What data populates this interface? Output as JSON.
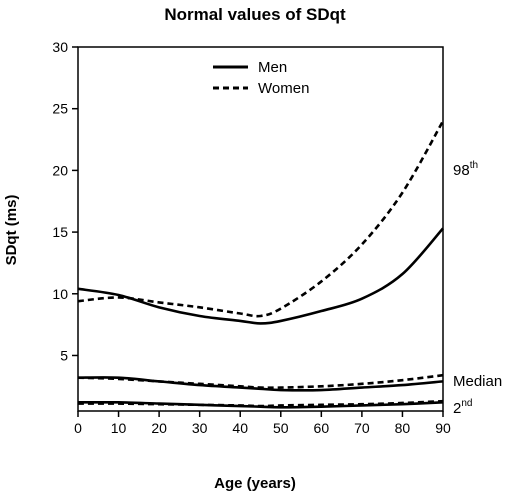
{
  "chart_data": {
    "type": "line",
    "title": "Normal values of SDqt",
    "xlabel": "Age (years)",
    "ylabel": "SDqt (ms)",
    "xlim": [
      0,
      90
    ],
    "ylim": [
      0.5,
      30
    ],
    "xticks": [
      0,
      10,
      20,
      30,
      40,
      50,
      60,
      70,
      80,
      90
    ],
    "yticks": [
      5,
      10,
      15,
      20,
      25,
      30
    ],
    "grid": false,
    "legend": {
      "placement": "top-center",
      "entries": [
        {
          "label": "Men",
          "style": "solid"
        },
        {
          "label": "Women",
          "style": "dashed"
        }
      ]
    },
    "curve_labels": [
      {
        "base": "98",
        "sup": "th"
      },
      {
        "base": "Median",
        "sup": ""
      },
      {
        "base": "2",
        "sup": "nd"
      }
    ],
    "x": [
      0,
      10,
      20,
      30,
      40,
      45,
      50,
      60,
      70,
      80,
      90
    ],
    "series": [
      {
        "group": "Men",
        "percentile": "98th",
        "style": "solid",
        "values": [
          10.4,
          9.9,
          8.9,
          8.2,
          7.8,
          7.6,
          7.8,
          8.6,
          9.6,
          11.6,
          15.3
        ]
      },
      {
        "group": "Women",
        "percentile": "98th",
        "style": "dashed",
        "values": [
          9.4,
          9.7,
          9.3,
          8.9,
          8.4,
          8.2,
          8.8,
          11.0,
          14.0,
          18.2,
          24.0
        ]
      },
      {
        "group": "Men",
        "percentile": "Median",
        "style": "solid",
        "values": [
          3.2,
          3.2,
          2.9,
          2.6,
          2.4,
          2.3,
          2.2,
          2.2,
          2.4,
          2.6,
          2.9
        ]
      },
      {
        "group": "Women",
        "percentile": "Median",
        "style": "dashed",
        "values": [
          3.2,
          3.1,
          2.9,
          2.7,
          2.5,
          2.4,
          2.4,
          2.5,
          2.7,
          3.0,
          3.4
        ]
      },
      {
        "group": "Men",
        "percentile": "2nd",
        "style": "solid",
        "values": [
          1.2,
          1.2,
          1.1,
          1.0,
          0.9,
          0.85,
          0.8,
          0.85,
          0.95,
          1.05,
          1.2
        ]
      },
      {
        "group": "Women",
        "percentile": "2nd",
        "style": "dashed",
        "values": [
          1.1,
          1.1,
          1.05,
          1.0,
          0.95,
          0.9,
          0.95,
          1.0,
          1.05,
          1.15,
          1.3
        ]
      }
    ]
  }
}
